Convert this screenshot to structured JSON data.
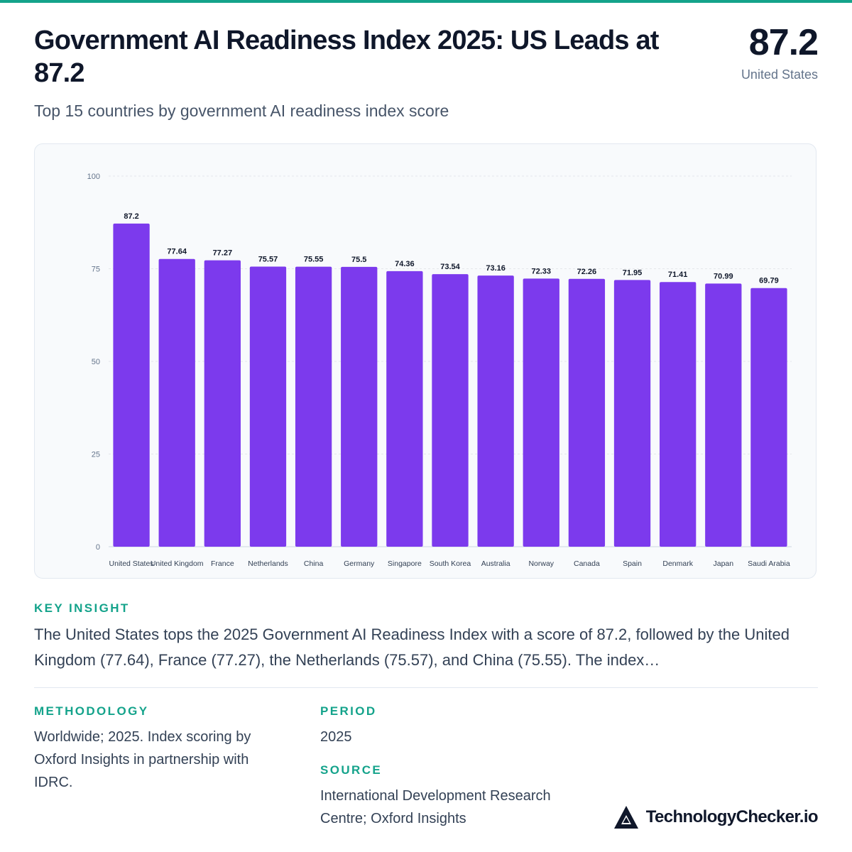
{
  "header": {
    "title": "Government AI Readiness Index 2025: US Leads at 87.2",
    "subtitle": "Top 15 countries by government AI readiness index score",
    "kpi_value": "87.2",
    "kpi_label": "United States"
  },
  "colors": {
    "accent": "#14a38b",
    "bar": "#7c3aed",
    "text": "#0f172a"
  },
  "chart_data": {
    "type": "bar",
    "categories": [
      "United States",
      "United Kingdom",
      "France",
      "Netherlands",
      "China",
      "Germany",
      "Singapore",
      "South Korea",
      "Australia",
      "Norway",
      "Canada",
      "Spain",
      "Denmark",
      "Japan",
      "Saudi Arabia"
    ],
    "values": [
      87.2,
      77.64,
      77.27,
      75.57,
      75.55,
      75.5,
      74.36,
      73.54,
      73.16,
      72.33,
      72.26,
      71.95,
      71.41,
      70.99,
      69.79
    ],
    "value_labels": [
      "87.2",
      "77.64",
      "77.27",
      "75.57",
      "75.55",
      "75.5",
      "74.36",
      "73.54",
      "73.16",
      "72.33",
      "72.26",
      "71.95",
      "71.41",
      "70.99",
      "69.79"
    ],
    "ylim": [
      0,
      100
    ],
    "yticks": [
      "0",
      "25",
      "50",
      "75",
      "100"
    ],
    "grid": true,
    "legend": "none"
  },
  "insight": {
    "label": "KEY INSIGHT",
    "text": "The United States tops the 2025 Government AI Readiness Index with a score of 87.2, followed by the United Kingdom (77.64), France (77.27), the Netherlands (75.57), and China (75.55). The index…"
  },
  "methodology": {
    "label": "METHODOLOGY",
    "text": "Worldwide; 2025. Index scoring by Oxford Insights in partnership with IDRC."
  },
  "period": {
    "label": "PERIOD",
    "text": "2025"
  },
  "source": {
    "label": "SOURCE",
    "text": "International Development Research Centre; Oxford Insights"
  },
  "brand": {
    "name": "TechnologyChecker.io",
    "logo_icon": "triangle-logo-icon"
  }
}
